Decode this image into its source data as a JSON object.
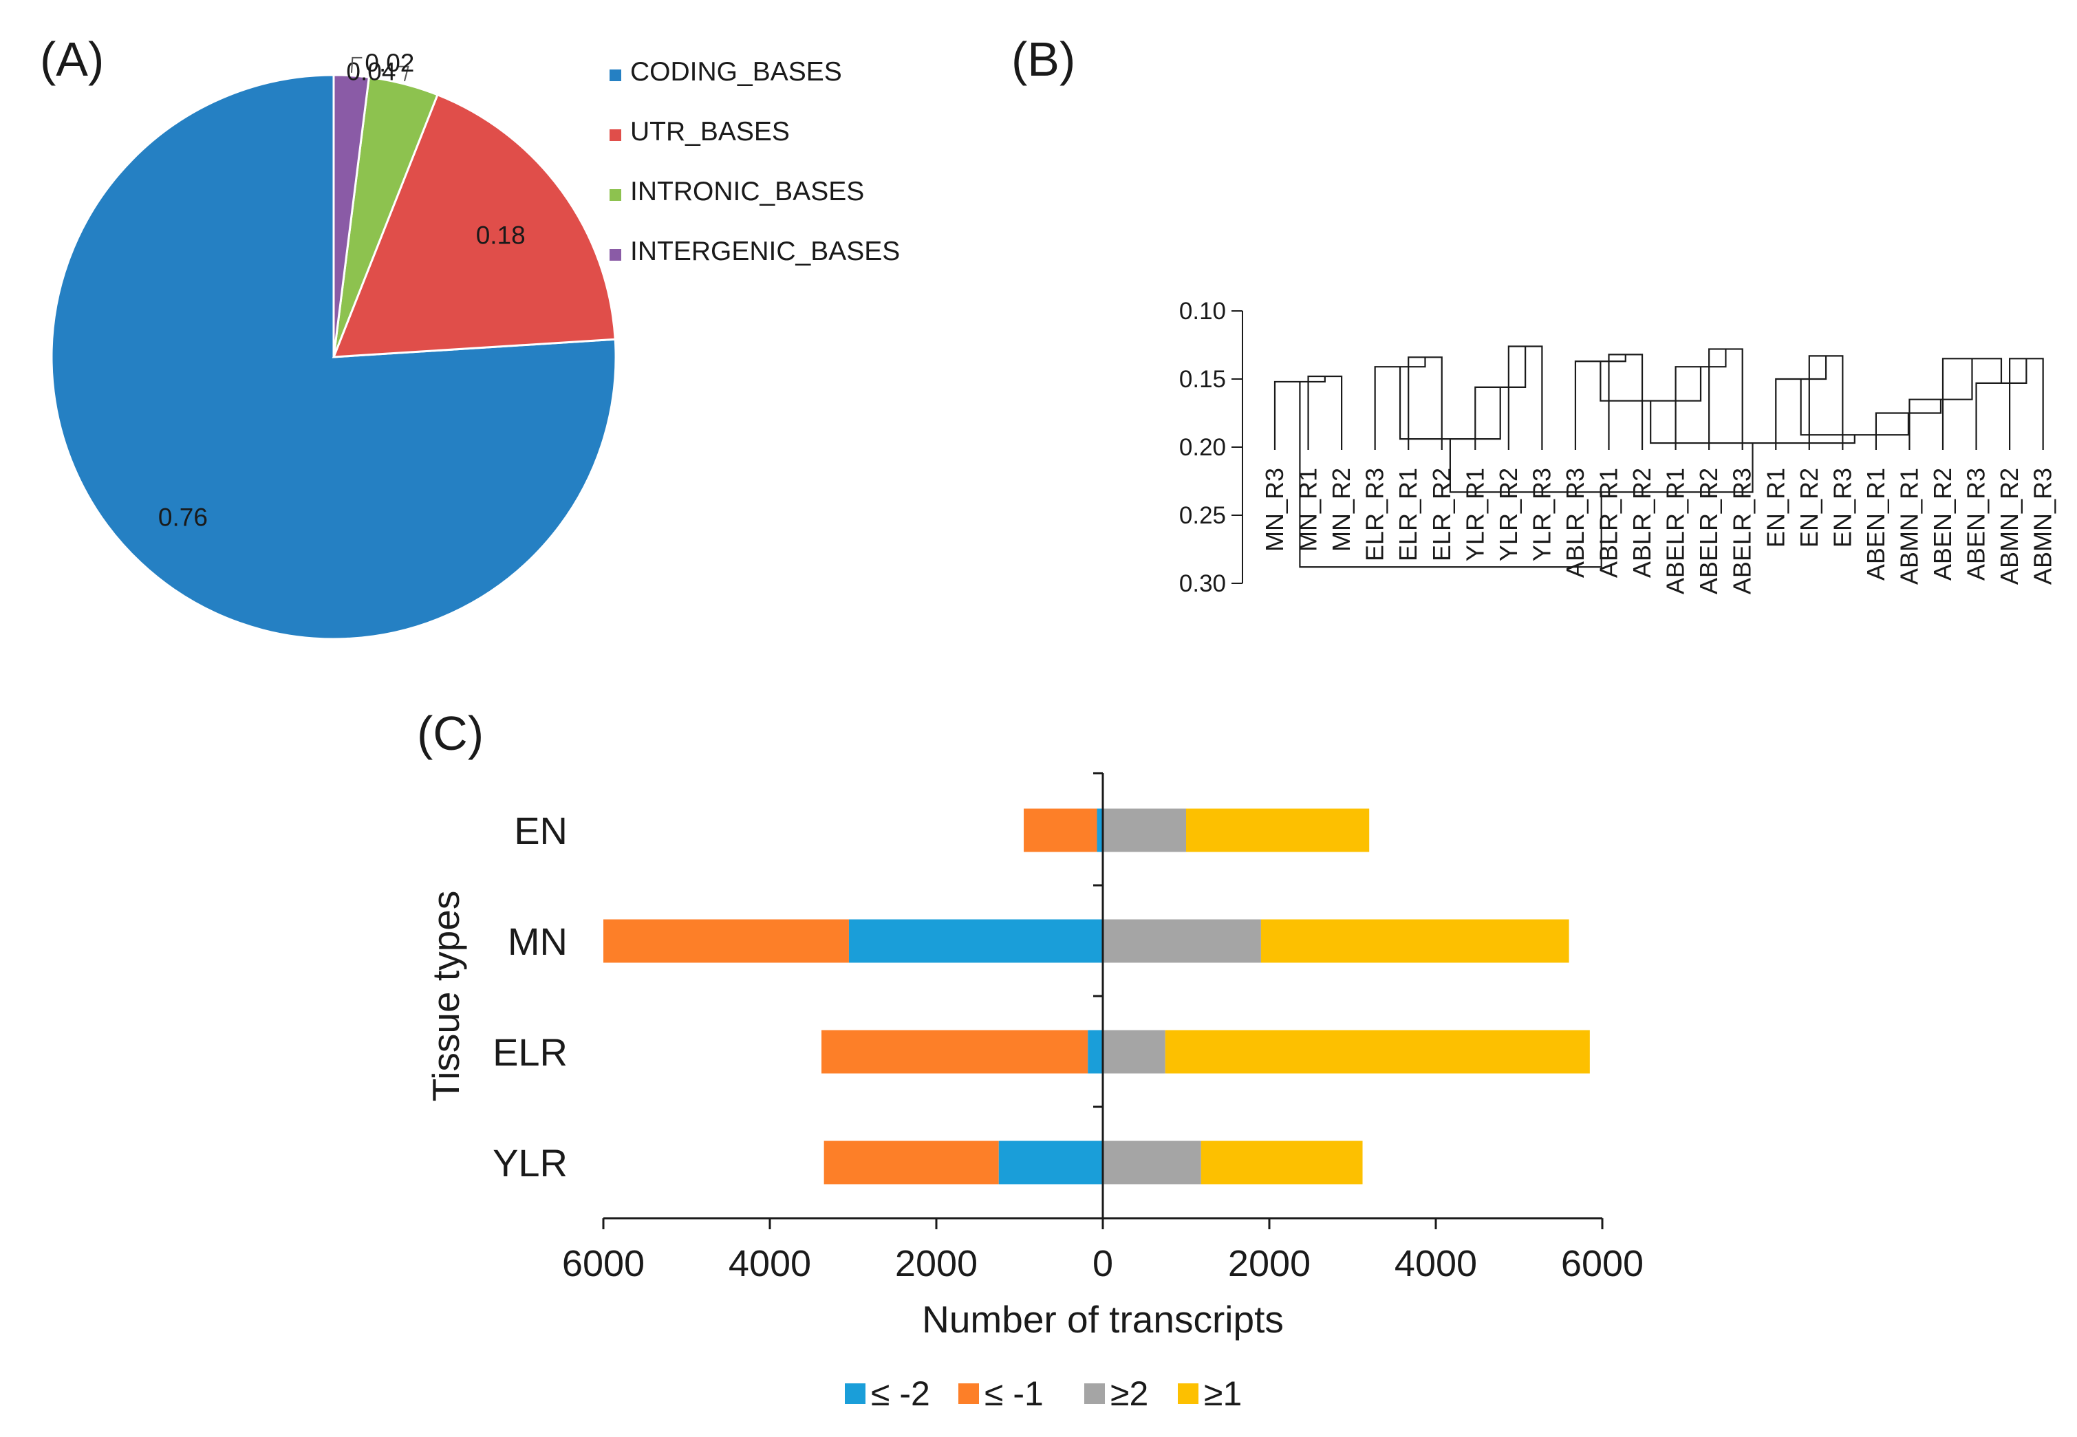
{
  "panels": {
    "a": "(A)",
    "b": "(B)",
    "c": "(C)"
  },
  "chart_data": [
    {
      "type": "pie",
      "panel": "(A)",
      "slices": [
        {
          "label": "CODING_BASES",
          "value": 0.76,
          "value_label": "0.76",
          "color": "#2580c3"
        },
        {
          "label": "UTR_BASES",
          "value": 0.18,
          "value_label": "0.18",
          "color": "#e04e4a"
        },
        {
          "label": "INTRONIC_BASES",
          "value": 0.04,
          "value_label": "0.04",
          "color": "#8dc24f"
        },
        {
          "label": "INTERGENIC_BASES",
          "value": 0.02,
          "value_label": "0.02",
          "color": "#8a5ba6"
        }
      ],
      "legend_position": "right"
    },
    {
      "type": "dendrogram",
      "panel": "(B)",
      "yticks": [
        0.3,
        0.25,
        0.2,
        0.15,
        0.1
      ],
      "ytick_labels": [
        "0.30",
        "0.25",
        "0.20",
        "0.15",
        "0.10"
      ],
      "ylim": [
        0.1,
        0.3
      ],
      "leaves": [
        "MN_R3",
        "MN_R1",
        "MN_R2",
        "ELR_R3",
        "ELR_R1",
        "ELR_R2",
        "YLR_R1",
        "YLR_R2",
        "YLR_R3",
        "ABLR_R3",
        "ABLR_R1",
        "ABLR_R2",
        "ABELR_R1",
        "ABELR_R2",
        "ABELR_R3",
        "EN_R1",
        "EN_R2",
        "EN_R3",
        "ABEN_R1",
        "ABMN_R1",
        "ABEN_R2",
        "ABEN_R3",
        "ABMN_R2",
        "ABMN_R3"
      ],
      "merges": [
        [
          "MN_R1",
          "MN_R2",
          0.148
        ],
        [
          "MN_R3",
          "n0",
          0.152
        ],
        [
          "ELR_R1",
          "ELR_R2",
          0.134
        ],
        [
          "ELR_R3",
          "n2",
          0.141
        ],
        [
          "YLR_R2",
          "YLR_R3",
          0.126
        ],
        [
          "YLR_R1",
          "n4",
          0.156
        ],
        [
          "n3",
          "n5",
          0.194
        ],
        [
          "ABLR_R1",
          "ABLR_R2",
          0.132
        ],
        [
          "ABLR_R3",
          "n7",
          0.137
        ],
        [
          "ABELR_R2",
          "ABELR_R3",
          0.128
        ],
        [
          "ABELR_R1",
          "n9",
          0.141
        ],
        [
          "n8",
          "n10",
          0.166
        ],
        [
          "EN_R2",
          "EN_R3",
          0.133
        ],
        [
          "EN_R1",
          "n12",
          0.15
        ],
        [
          "ABMN_R2",
          "ABMN_R3",
          0.135
        ],
        [
          "ABEN_R3",
          "n14",
          0.153
        ],
        [
          "ABEN_R2",
          "n15",
          0.135
        ],
        [
          "ABMN_R1",
          "n16",
          0.165
        ],
        [
          "ABEN_R1",
          "n17",
          0.175
        ],
        [
          "n13",
          "n18",
          0.191
        ],
        [
          "n11",
          "n19",
          0.197
        ],
        [
          "n6",
          "n20",
          0.233
        ],
        [
          "n1",
          "n21",
          0.288
        ]
      ]
    },
    {
      "type": "bar",
      "orientation": "horizontal",
      "stacked": "diverging",
      "panel": "(C)",
      "categories": [
        "EN",
        "MN",
        "ELR",
        "YLR"
      ],
      "series": [
        {
          "name": "≤ -2",
          "color": "#1a9ed9",
          "values": [
            -70,
            -3050,
            -180,
            -1250
          ]
        },
        {
          "name": "≤ -1",
          "color": "#fd7f28",
          "values": [
            -880,
            -2950,
            -3200,
            -2100
          ]
        },
        {
          "name": "≥2",
          "color": "#a5a5a5",
          "values": [
            1000,
            1900,
            750,
            1180
          ]
        },
        {
          "name": "≥1",
          "color": "#fdc000",
          "values": [
            2200,
            3700,
            5100,
            1940
          ]
        }
      ],
      "xlim": [
        -6000,
        6000
      ],
      "xticks": [
        -6000,
        -4000,
        -2000,
        0,
        2000,
        4000,
        6000
      ],
      "xtick_labels": [
        "6000",
        "4000",
        "2000",
        "0",
        "2000",
        "4000",
        "6000"
      ],
      "xlabel": "Number of transcripts",
      "ylabel": "Tissue types",
      "legend_position": "bottom"
    }
  ]
}
